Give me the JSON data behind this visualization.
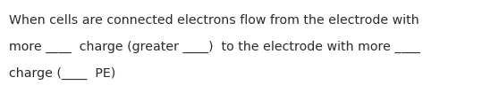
{
  "line1": "When cells are connected electrons flow from the electrode with",
  "line2": "more ____  charge (greater ____)  to the electrode with more ____",
  "line3": "charge (____  PE)",
  "background_color": "#ffffff",
  "text_color": "#2a2a2a",
  "font_size": 10.2,
  "fig_width": 5.58,
  "fig_height": 1.05,
  "dpi": 100
}
